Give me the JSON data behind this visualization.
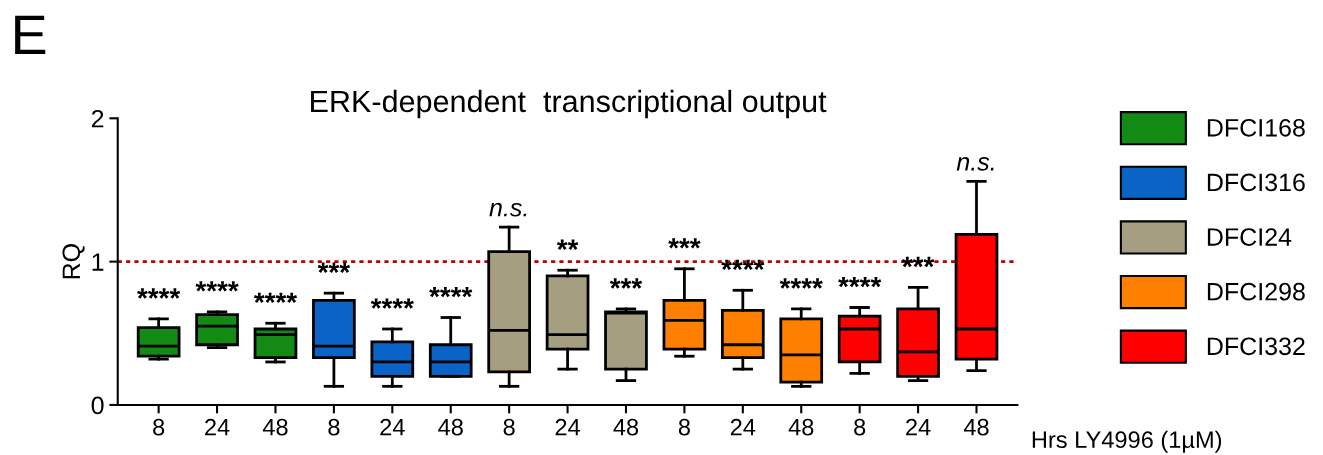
{
  "chart_data": {
    "type": "box",
    "title": "ERK-dependent  transcriptional output",
    "ylabel": "RQ",
    "xlabel": "Hrs LY4996 (1µM)",
    "categories": [
      "8",
      "24",
      "48",
      "8",
      "24",
      "48",
      "8",
      "24",
      "48",
      "8",
      "24",
      "48",
      "8",
      "24",
      "48"
    ],
    "ylim": [
      0,
      2
    ],
    "yticks": [
      0,
      1,
      2
    ],
    "grid": false,
    "legend": "top right",
    "ref_lines": [
      {
        "axis": "y",
        "value": 1,
        "color": "#c00000",
        "line_style": "dotted"
      }
    ],
    "series": [
      {
        "name": "DFCI168",
        "color": "#138a13",
        "boxes": [
          {
            "low": 0.32,
            "q1": 0.34,
            "median": 0.41,
            "q3": 0.54,
            "high": 0.6
          },
          {
            "low": 0.4,
            "q1": 0.42,
            "median": 0.55,
            "q3": 0.63,
            "high": 0.65
          },
          {
            "low": 0.3,
            "q1": 0.33,
            "median": 0.49,
            "q3": 0.53,
            "high": 0.57
          },
          null,
          null,
          null,
          null,
          null,
          null,
          null,
          null,
          null,
          null,
          null,
          null
        ]
      },
      {
        "name": "DFCI316",
        "color": "#0a64c8",
        "boxes": [
          null,
          null,
          null,
          {
            "low": 0.13,
            "q1": 0.33,
            "median": 0.41,
            "q3": 0.73,
            "high": 0.78
          },
          {
            "low": 0.13,
            "q1": 0.2,
            "median": 0.3,
            "q3": 0.44,
            "high": 0.53
          },
          {
            "low": 0.2,
            "q1": 0.2,
            "median": 0.3,
            "q3": 0.42,
            "high": 0.61
          },
          null,
          null,
          null,
          null,
          null,
          null,
          null,
          null,
          null
        ]
      },
      {
        "name": "DFCI24",
        "color": "#a59e80",
        "boxes": [
          null,
          null,
          null,
          null,
          null,
          null,
          {
            "low": 0.13,
            "q1": 0.23,
            "median": 0.52,
            "q3": 1.07,
            "high": 1.24
          },
          {
            "low": 0.25,
            "q1": 0.39,
            "median": 0.49,
            "q3": 0.9,
            "high": 0.94
          },
          {
            "low": 0.17,
            "q1": 0.25,
            "median": 0.64,
            "q3": 0.65,
            "high": 0.67
          },
          null,
          null,
          null,
          null,
          null,
          null
        ]
      },
      {
        "name": "DFCI298",
        "color": "#ff8000",
        "boxes": [
          null,
          null,
          null,
          null,
          null,
          null,
          null,
          null,
          null,
          {
            "low": 0.34,
            "q1": 0.39,
            "median": 0.59,
            "q3": 0.73,
            "high": 0.95
          },
          {
            "low": 0.25,
            "q1": 0.33,
            "median": 0.42,
            "q3": 0.66,
            "high": 0.8
          },
          {
            "low": 0.13,
            "q1": 0.16,
            "median": 0.35,
            "q3": 0.6,
            "high": 0.67
          },
          null,
          null,
          null
        ]
      },
      {
        "name": "DFCI332",
        "color": "#ff0000",
        "boxes": [
          null,
          null,
          null,
          null,
          null,
          null,
          null,
          null,
          null,
          null,
          null,
          null,
          {
            "low": 0.22,
            "q1": 0.3,
            "median": 0.53,
            "q3": 0.62,
            "high": 0.68
          },
          {
            "low": 0.17,
            "q1": 0.2,
            "median": 0.37,
            "q3": 0.67,
            "high": 0.82
          },
          {
            "low": 0.24,
            "q1": 0.32,
            "median": 0.53,
            "q3": 1.19,
            "high": 1.56
          }
        ]
      }
    ],
    "annotations": [
      "****",
      "****",
      "****",
      "***",
      "****",
      "****",
      "n.s.",
      "**",
      "***",
      "***",
      "****",
      "****",
      "****",
      "***",
      "n.s.",
      "E"
    ]
  }
}
